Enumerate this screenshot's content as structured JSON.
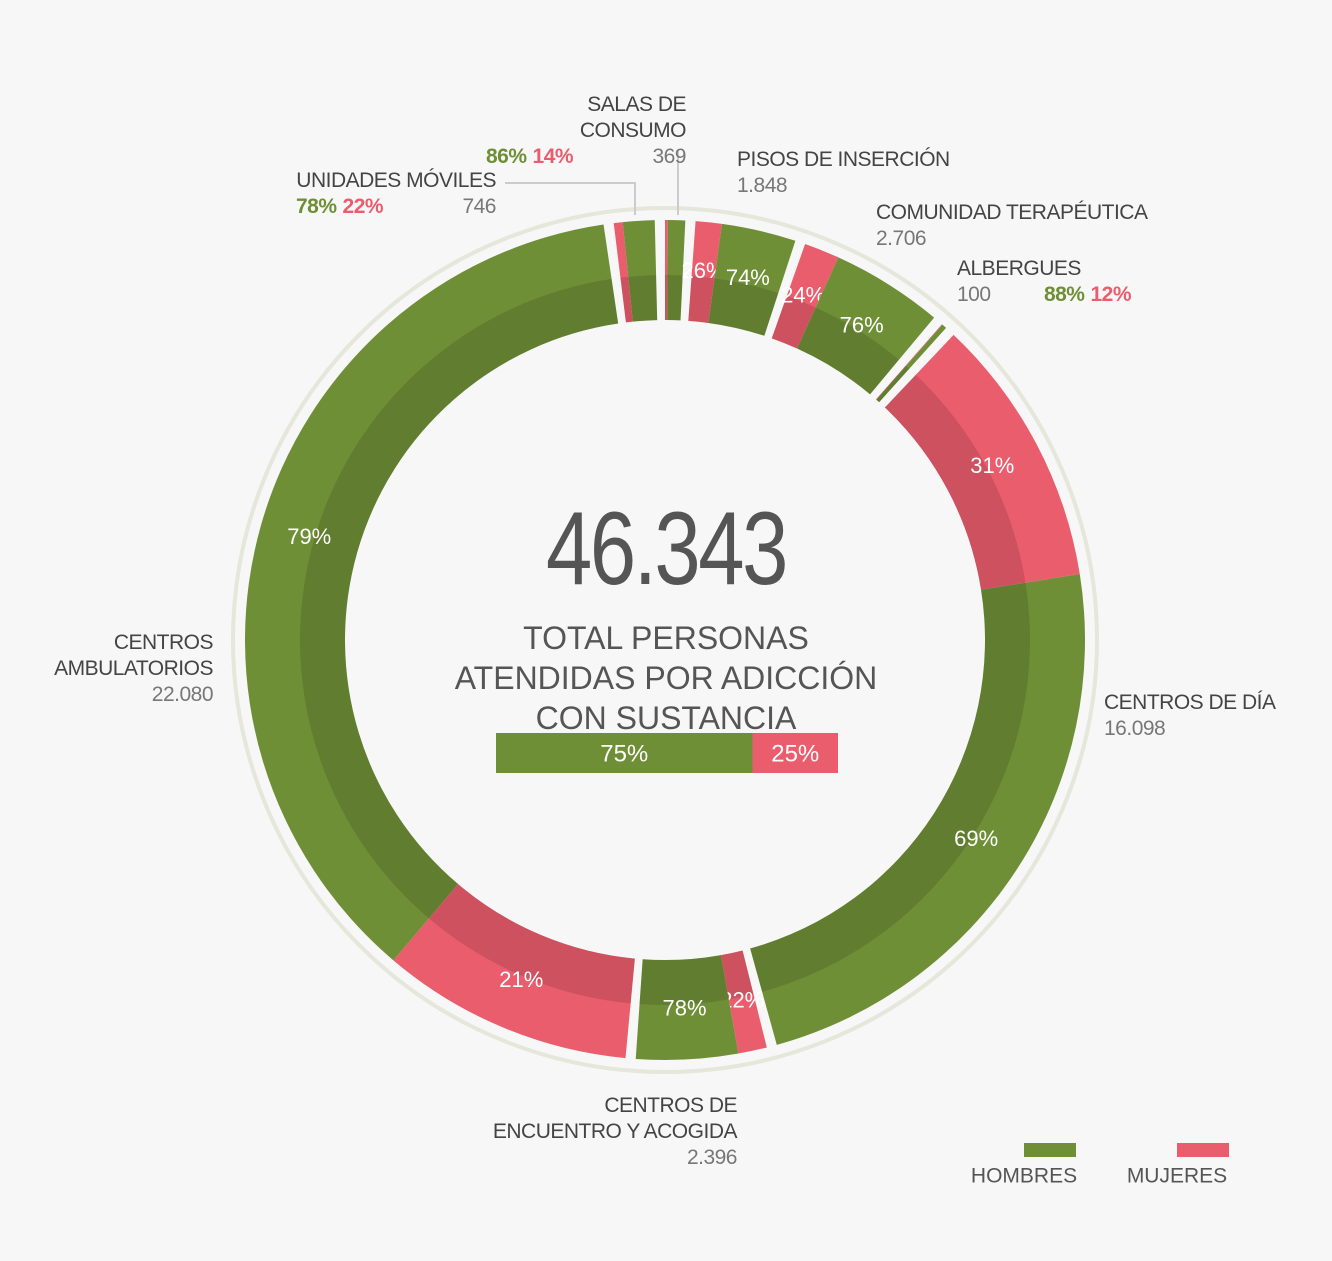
{
  "chart_data": {
    "type": "donut",
    "total": {
      "value": 46343,
      "label": "46.343"
    },
    "subtitle": "TOTAL PERSONAS ATENDIDAS POR ADICCIÓN CON SUSTANCIA",
    "categories": [
      "SALAS DE CONSUMO",
      "PISOS DE INSERCIÓN",
      "COMUNIDAD TERAPÉUTICA",
      "ALBERGUES",
      "CENTROS DE DÍA",
      "CENTROS DE ENCUENTRO Y ACOGIDA",
      "CENTROS AMBULATORIOS",
      "UNIDADES MÓVILES"
    ],
    "values": [
      369,
      1848,
      2706,
      100,
      16098,
      2396,
      22080,
      746
    ],
    "value_labels": [
      "369",
      "1.848",
      "2.706",
      "100",
      "16.098",
      "2.396",
      "22.080",
      "746"
    ],
    "series": [
      {
        "name": "HOMBRES",
        "color": "#6f8f37",
        "values": [
          86,
          74,
          76,
          88,
          69,
          78,
          79,
          78
        ],
        "value_labels": [
          "86%",
          "74%",
          "76%",
          "88%",
          "69%",
          "78%",
          "79%",
          "78%"
        ]
      },
      {
        "name": "MUJERES",
        "color": "#ea5d6d",
        "values": [
          14,
          26,
          24,
          12,
          31,
          22,
          21,
          22
        ],
        "value_labels": [
          "14%",
          "26%",
          "24%",
          "12%",
          "31%",
          "22%",
          "21%",
          "22%"
        ]
      }
    ],
    "summary": {
      "values": [
        75,
        25
      ],
      "value_labels": [
        "75%",
        "25%"
      ]
    }
  }
}
